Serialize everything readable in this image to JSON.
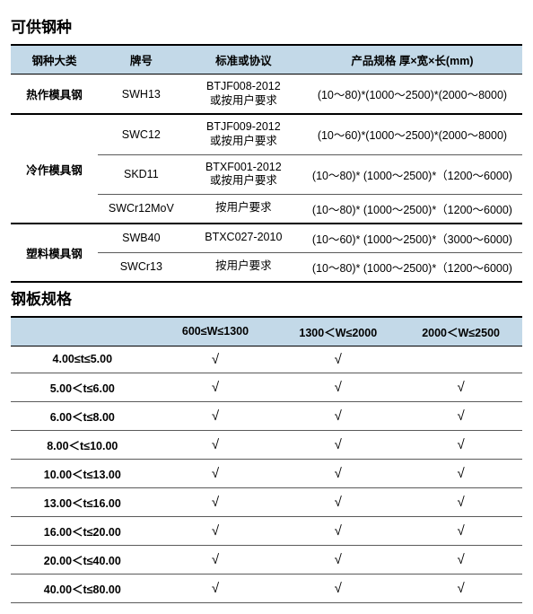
{
  "section1": {
    "title": "可供钢种",
    "headers": [
      "钢种大类",
      "牌号",
      "标准或协议",
      "产品规格 厚×宽×长(mm)"
    ],
    "col_widths": [
      "17%",
      "17%",
      "23%",
      "43%"
    ],
    "header_bg": "#c3d9e8",
    "groups": [
      {
        "category": "热作模具钢",
        "rows": [
          {
            "grade": "SWH13",
            "std_line1": "BTJF008-2012",
            "std_line2": "或按用户要求",
            "spec": "(10～80)*(1000～2500)*(2000～8000)"
          }
        ]
      },
      {
        "category": "冷作模具钢",
        "rows": [
          {
            "grade": "SWC12",
            "std_line1": "BTJF009-2012",
            "std_line2": "或按用户要求",
            "spec": "(10～60)*(1000～2500)*(2000～8000)"
          },
          {
            "grade": "SKD11",
            "std_line1": "BTXF001-2012",
            "std_line2": "或按用户要求",
            "spec": "(10～80)* (1000～2500)*（1200～6000)"
          },
          {
            "grade": "SWCr12MoV",
            "std_line1": "按用户要求",
            "std_line2": "",
            "spec": "(10～80)* (1000～2500)*（1200～6000)"
          }
        ]
      },
      {
        "category": "塑料模具钢",
        "rows": [
          {
            "grade": "SWB40",
            "std_line1": "BTXC027-2010",
            "std_line2": "",
            "spec": "(10～60)* (1000～2500)*（3000～6000)"
          },
          {
            "grade": "SWCr13",
            "std_line1": "按用户要求",
            "std_line2": "",
            "spec": "(10～80)* (1000～2500)*（1200～6000)"
          }
        ]
      }
    ]
  },
  "section2": {
    "title": "钢板规格",
    "headers": [
      "",
      "600≤W≤1300",
      "1300＜W≤2000",
      "2000＜W≤2500"
    ],
    "col_widths": [
      "28%",
      "24%",
      "24%",
      "24%"
    ],
    "header_bg": "#c3d9e8",
    "check_glyph": "√",
    "rows": [
      {
        "range": "4.00≤t≤5.00",
        "checks": [
          true,
          true,
          false
        ]
      },
      {
        "range": "5.00＜t≤6.00",
        "checks": [
          true,
          true,
          true
        ]
      },
      {
        "range": "6.00＜t≤8.00",
        "checks": [
          true,
          true,
          true
        ]
      },
      {
        "range": "8.00＜t≤10.00",
        "checks": [
          true,
          true,
          true
        ]
      },
      {
        "range": "10.00＜t≤13.00",
        "checks": [
          true,
          true,
          true
        ]
      },
      {
        "range": "13.00＜t≤16.00",
        "checks": [
          true,
          true,
          true
        ]
      },
      {
        "range": "16.00＜t≤20.00",
        "checks": [
          true,
          true,
          true
        ]
      },
      {
        "range": "20.00＜t≤40.00",
        "checks": [
          true,
          true,
          true
        ]
      },
      {
        "range": "40.00＜t≤80.00",
        "checks": [
          true,
          true,
          true
        ]
      }
    ]
  }
}
